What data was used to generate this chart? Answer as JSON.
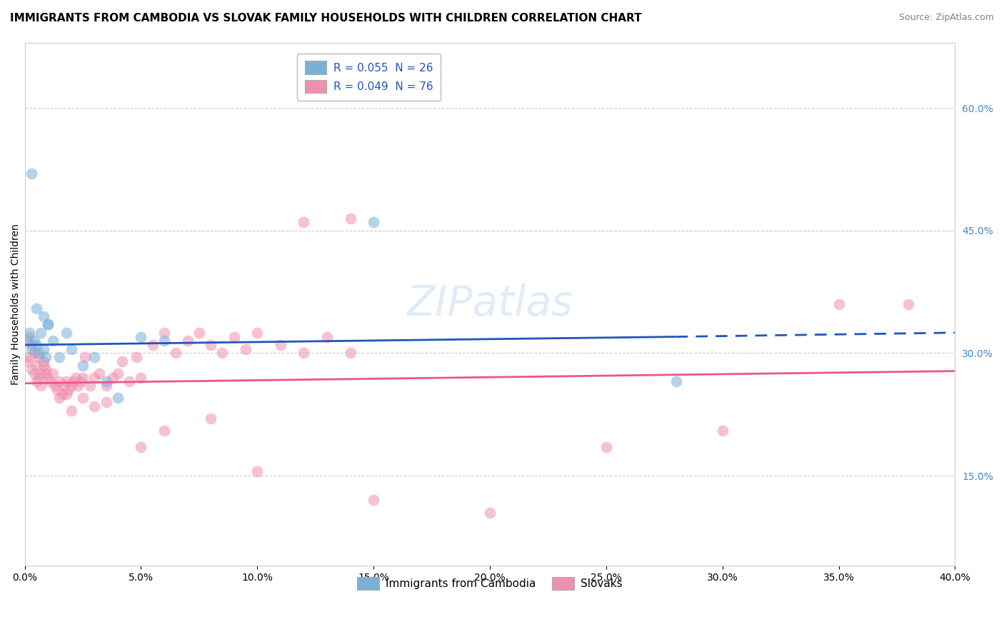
{
  "title": "IMMIGRANTS FROM CAMBODIA VS SLOVAK FAMILY HOUSEHOLDS WITH CHILDREN CORRELATION CHART",
  "source": "Source: ZipAtlas.com",
  "ylabel": "Family Households with Children",
  "right_yticks": [
    0.15,
    0.3,
    0.45,
    0.6
  ],
  "right_ytick_labels": [
    "15.0%",
    "30.0%",
    "45.0%",
    "60.0%"
  ],
  "xlim": [
    0.0,
    0.4
  ],
  "ylim": [
    0.04,
    0.68
  ],
  "legend_entries": [
    {
      "label": "R = 0.055  N = 26",
      "color": "#adc8e8"
    },
    {
      "label": "R = 0.049  N = 76",
      "color": "#f5b8cc"
    }
  ],
  "legend_label1": "Immigrants from Cambodia",
  "legend_label2": "Slovaks",
  "blue_color": "#7ab0d8",
  "pink_color": "#f090b0",
  "blue_line_color": "#2255bb",
  "pink_line_color": "#ee5588",
  "scatter_blue": [
    [
      0.001,
      0.315
    ],
    [
      0.002,
      0.325
    ],
    [
      0.003,
      0.305
    ],
    [
      0.004,
      0.315
    ],
    [
      0.005,
      0.31
    ],
    [
      0.006,
      0.3
    ],
    [
      0.007,
      0.325
    ],
    [
      0.008,
      0.305
    ],
    [
      0.009,
      0.295
    ],
    [
      0.01,
      0.335
    ],
    [
      0.012,
      0.315
    ],
    [
      0.015,
      0.295
    ],
    [
      0.018,
      0.325
    ],
    [
      0.02,
      0.305
    ],
    [
      0.025,
      0.285
    ],
    [
      0.03,
      0.295
    ],
    [
      0.035,
      0.265
    ],
    [
      0.04,
      0.245
    ],
    [
      0.05,
      0.32
    ],
    [
      0.06,
      0.315
    ],
    [
      0.008,
      0.345
    ],
    [
      0.01,
      0.335
    ],
    [
      0.003,
      0.52
    ],
    [
      0.005,
      0.355
    ],
    [
      0.15,
      0.46
    ],
    [
      0.28,
      0.265
    ]
  ],
  "scatter_pink": [
    [
      0.001,
      0.29
    ],
    [
      0.002,
      0.295
    ],
    [
      0.003,
      0.28
    ],
    [
      0.004,
      0.275
    ],
    [
      0.005,
      0.265
    ],
    [
      0.006,
      0.27
    ],
    [
      0.007,
      0.26
    ],
    [
      0.008,
      0.285
    ],
    [
      0.009,
      0.275
    ],
    [
      0.01,
      0.27
    ],
    [
      0.011,
      0.265
    ],
    [
      0.012,
      0.275
    ],
    [
      0.013,
      0.26
    ],
    [
      0.014,
      0.255
    ],
    [
      0.015,
      0.265
    ],
    [
      0.016,
      0.25
    ],
    [
      0.017,
      0.26
    ],
    [
      0.018,
      0.265
    ],
    [
      0.019,
      0.255
    ],
    [
      0.02,
      0.26
    ],
    [
      0.021,
      0.265
    ],
    [
      0.022,
      0.27
    ],
    [
      0.023,
      0.26
    ],
    [
      0.024,
      0.265
    ],
    [
      0.025,
      0.27
    ],
    [
      0.026,
      0.295
    ],
    [
      0.028,
      0.26
    ],
    [
      0.03,
      0.27
    ],
    [
      0.032,
      0.275
    ],
    [
      0.035,
      0.26
    ],
    [
      0.038,
      0.27
    ],
    [
      0.04,
      0.275
    ],
    [
      0.042,
      0.29
    ],
    [
      0.045,
      0.265
    ],
    [
      0.048,
      0.295
    ],
    [
      0.05,
      0.27
    ],
    [
      0.055,
      0.31
    ],
    [
      0.06,
      0.325
    ],
    [
      0.065,
      0.3
    ],
    [
      0.07,
      0.315
    ],
    [
      0.075,
      0.325
    ],
    [
      0.08,
      0.31
    ],
    [
      0.085,
      0.3
    ],
    [
      0.09,
      0.32
    ],
    [
      0.095,
      0.305
    ],
    [
      0.1,
      0.325
    ],
    [
      0.11,
      0.31
    ],
    [
      0.12,
      0.3
    ],
    [
      0.13,
      0.32
    ],
    [
      0.14,
      0.3
    ],
    [
      0.002,
      0.32
    ],
    [
      0.003,
      0.31
    ],
    [
      0.004,
      0.3
    ],
    [
      0.005,
      0.285
    ],
    [
      0.006,
      0.295
    ],
    [
      0.007,
      0.275
    ],
    [
      0.008,
      0.29
    ],
    [
      0.009,
      0.28
    ],
    [
      0.015,
      0.245
    ],
    [
      0.018,
      0.25
    ],
    [
      0.02,
      0.23
    ],
    [
      0.025,
      0.245
    ],
    [
      0.03,
      0.235
    ],
    [
      0.035,
      0.24
    ],
    [
      0.05,
      0.185
    ],
    [
      0.06,
      0.205
    ],
    [
      0.08,
      0.22
    ],
    [
      0.12,
      0.46
    ],
    [
      0.14,
      0.465
    ],
    [
      0.35,
      0.36
    ],
    [
      0.25,
      0.185
    ],
    [
      0.3,
      0.205
    ],
    [
      0.38,
      0.36
    ],
    [
      0.1,
      0.155
    ],
    [
      0.15,
      0.12
    ],
    [
      0.2,
      0.105
    ]
  ],
  "blue_trendline_solid": {
    "x_start": 0.0,
    "x_end": 0.28,
    "y_start": 0.31,
    "y_end": 0.32
  },
  "blue_trendline_dashed": {
    "x_start": 0.28,
    "x_end": 0.4,
    "y_start": 0.32,
    "y_end": 0.325
  },
  "pink_trendline": {
    "x_start": 0.0,
    "x_end": 0.4,
    "y_start": 0.263,
    "y_end": 0.278
  },
  "grid_color": "#cccccc",
  "background_color": "#ffffff",
  "title_fontsize": 11,
  "source_fontsize": 9,
  "axis_label_fontsize": 10,
  "tick_fontsize": 10,
  "right_tick_color": "#4488cc",
  "xticks": [
    0.0,
    0.05,
    0.1,
    0.15,
    0.2,
    0.25,
    0.3,
    0.35,
    0.4
  ],
  "watermark": "ZIPatlas"
}
